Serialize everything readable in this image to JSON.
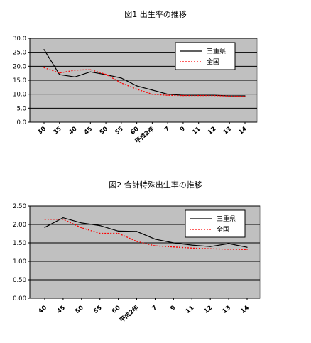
{
  "chart_data": [
    {
      "type": "line",
      "title": "図1  出生率の推移",
      "categories": [
        "30",
        "35",
        "40",
        "45",
        "50",
        "55",
        "60",
        "平成2年",
        "7",
        "9",
        "11",
        "12",
        "13",
        "14"
      ],
      "ylim": [
        0,
        30
      ],
      "yticks": [
        "0.0",
        "5.0",
        "10.0",
        "15.0",
        "20.0",
        "25.0",
        "30.0"
      ],
      "grid": true,
      "legend_position": "top-right",
      "series": [
        {
          "name": "三重県",
          "color": "#000000",
          "style": "solid",
          "values": [
            26.0,
            17.0,
            16.2,
            18.0,
            17.0,
            15.8,
            13.0,
            11.5,
            10.0,
            9.6,
            9.6,
            9.6,
            9.4,
            9.4
          ]
        },
        {
          "name": "全国",
          "color": "#ff0000",
          "style": "dotted",
          "values": [
            19.5,
            17.6,
            18.6,
            18.8,
            17.1,
            14.0,
            11.8,
            10.0,
            9.6,
            9.5,
            9.5,
            9.5,
            9.3,
            9.2
          ]
        }
      ]
    },
    {
      "type": "line",
      "title": "図2  合計特殊出生率の推移",
      "categories": [
        "40",
        "45",
        "50",
        "55",
        "60",
        "平成2年",
        "7",
        "9",
        "11",
        "12",
        "13",
        "14"
      ],
      "ylim": [
        0,
        2.5
      ],
      "yticks": [
        "0.00",
        "0.50",
        "1.00",
        "1.50",
        "2.00",
        "2.50"
      ],
      "grid": true,
      "legend_position": "top-right",
      "series": [
        {
          "name": "三重県",
          "color": "#000000",
          "style": "solid",
          "values": [
            1.92,
            2.18,
            2.04,
            1.97,
            1.82,
            1.81,
            1.6,
            1.5,
            1.44,
            1.4,
            1.48,
            1.38
          ]
        },
        {
          "name": "全国",
          "color": "#ff0000",
          "style": "dotted",
          "values": [
            2.14,
            2.14,
            1.91,
            1.76,
            1.76,
            1.54,
            1.42,
            1.39,
            1.36,
            1.34,
            1.33,
            1.32
          ]
        }
      ]
    }
  ]
}
